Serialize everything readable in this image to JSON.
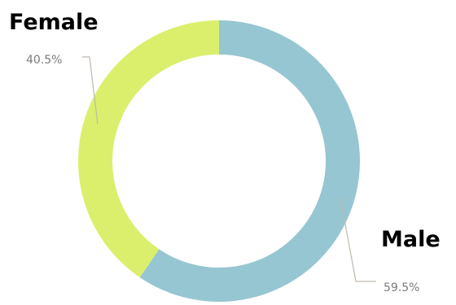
{
  "chart_data": {
    "type": "pie",
    "variant": "donut",
    "categories": [
      "Male",
      "Female"
    ],
    "values": [
      59.5,
      40.5
    ],
    "value_labels": [
      "59.5%",
      "40.5%"
    ],
    "colors": [
      "#96c6d1",
      "#dbef6d"
    ],
    "title": "",
    "legend": false
  }
}
